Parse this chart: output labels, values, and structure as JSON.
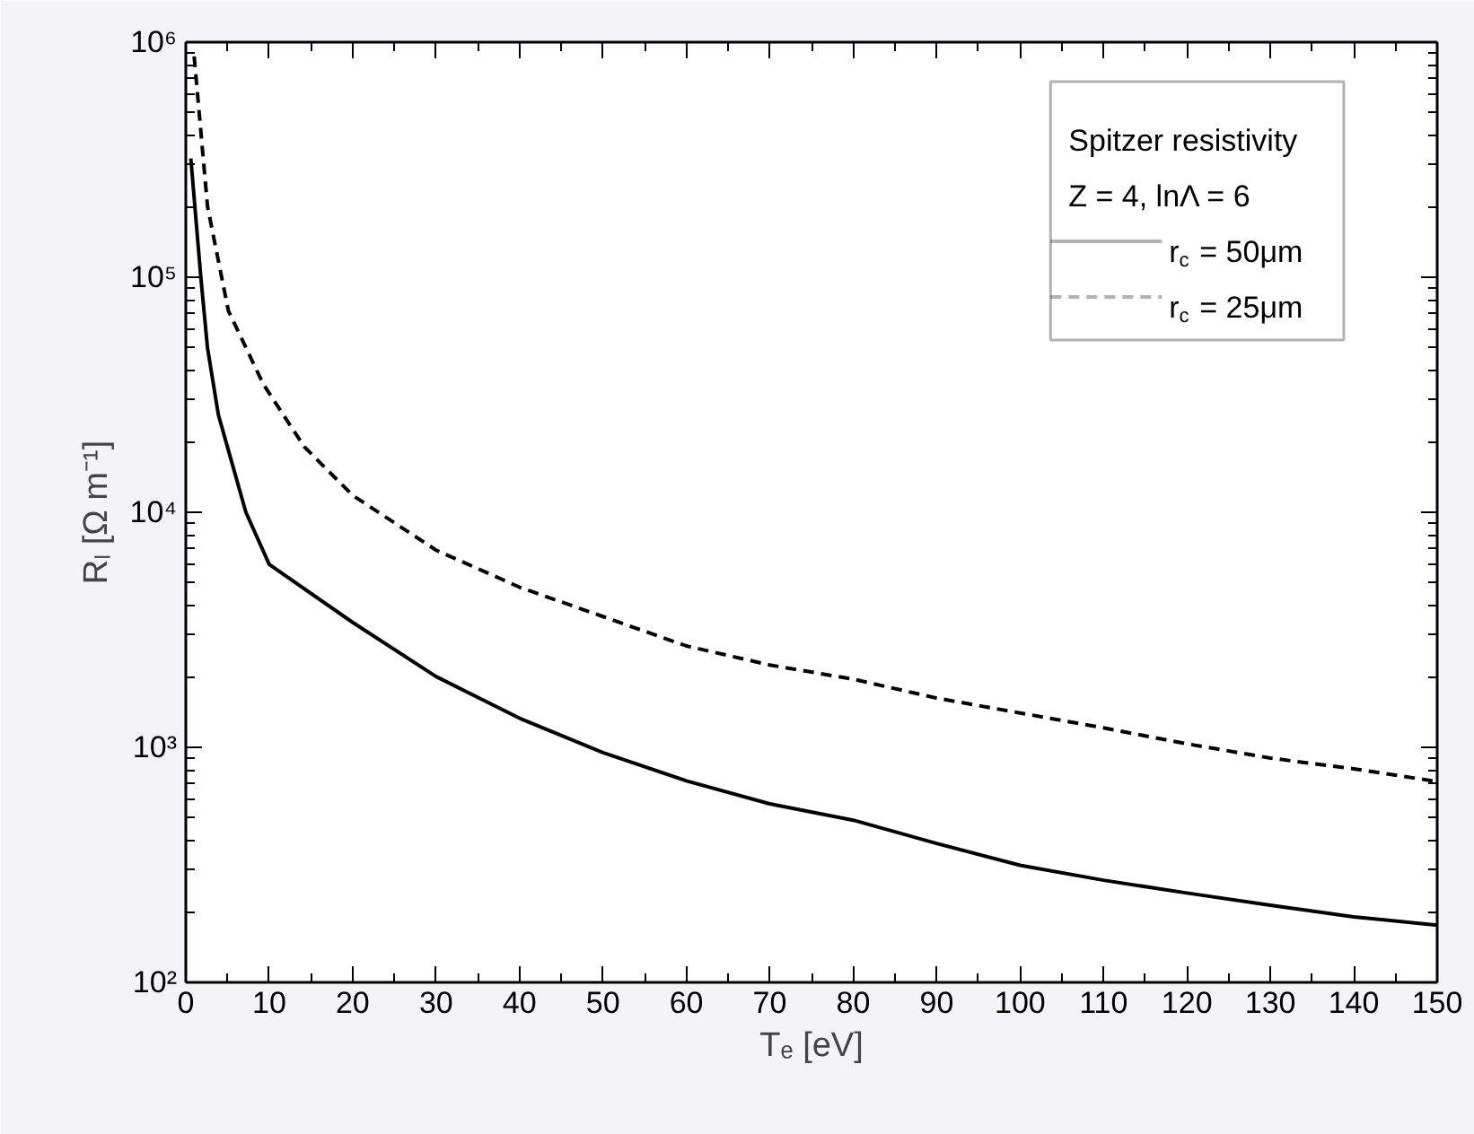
{
  "chart_data": {
    "type": "line",
    "xlabel": "Tₑ [eV]",
    "ylabel": "Rₗ [Ω m⁻¹]",
    "legend_title": "Spitzer resistivity",
    "annotations": [
      "Z = 4, lnΛ = 6"
    ],
    "series": [
      {
        "name": "r$_{c}$ = 50μm",
        "color": "#000000",
        "line_style": "solid",
        "x": [
          0.6,
          1.8,
          2.6,
          3.9,
          7.2,
          10,
          20,
          30,
          40,
          50,
          60,
          70,
          80,
          90,
          100,
          110,
          120,
          130,
          140,
          150
        ],
        "values": [
          320000,
          100000,
          50000,
          26000,
          10000,
          6000,
          3400,
          2000,
          1330,
          950,
          720,
          575,
          490,
          390,
          315,
          272,
          240,
          213,
          190,
          175
        ]
      },
      {
        "name": "r$_{c}$ = 25μm",
        "color": "#000000",
        "line_style": "dashed",
        "x": [
          1,
          2.6,
          5.1,
          9.3,
          14.2,
          20,
          30,
          40,
          50,
          60,
          70,
          80,
          90,
          100,
          110,
          120,
          130,
          140,
          150
        ],
        "values": [
          870000,
          200000,
          72000,
          35000,
          19000,
          11800,
          6900,
          4800,
          3600,
          2700,
          2240,
          1950,
          1620,
          1400,
          1210,
          1035,
          900,
          810,
          715
        ]
      }
    ],
    "xlim": [
      0,
      150
    ],
    "ylim": [
      100,
      1000000
    ],
    "xticks": [
      0,
      10,
      20,
      30,
      40,
      50,
      60,
      70,
      80,
      90,
      100,
      110,
      120,
      130,
      140,
      150
    ],
    "yticks": [
      {
        "value": 100,
        "label": "10²"
      },
      {
        "value": 1000,
        "label": "10³"
      },
      {
        "value": 10000,
        "label": "10⁴"
      },
      {
        "value": 100000,
        "label": "10⁵"
      },
      {
        "value": 1000000,
        "label": "10⁶"
      }
    ],
    "log": true,
    "grid": false,
    "legend": "top right"
  }
}
